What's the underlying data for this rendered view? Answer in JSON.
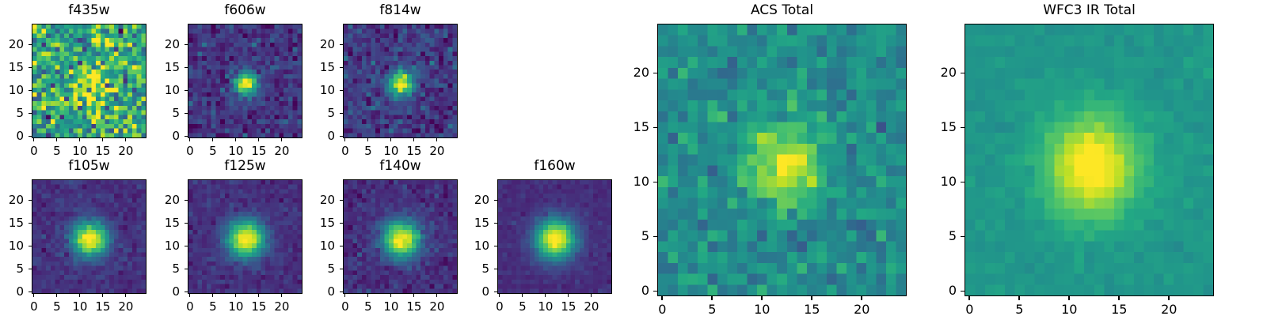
{
  "figure": {
    "description": "Grid of astronomical image cutouts in HST filters plus stacked totals",
    "background": "#ffffff"
  },
  "colors": {
    "axis": "#000000",
    "text": "#000000",
    "viridis_stops": [
      [
        0.0,
        "#440154"
      ],
      [
        0.1,
        "#482475"
      ],
      [
        0.2,
        "#414487"
      ],
      [
        0.3,
        "#355f8d"
      ],
      [
        0.4,
        "#2a788e"
      ],
      [
        0.5,
        "#21918c"
      ],
      [
        0.6,
        "#22a884"
      ],
      [
        0.7,
        "#44bf70"
      ],
      [
        0.8,
        "#7ad151"
      ],
      [
        0.9,
        "#bddf26"
      ],
      [
        1.0,
        "#fde725"
      ]
    ]
  },
  "chart_data": [
    {
      "id": "f435w",
      "type": "heatmap",
      "title": "f435w",
      "grid": [
        25,
        25
      ],
      "axis_range": [
        -0.5,
        24.5
      ],
      "xticks": [
        0,
        5,
        10,
        15,
        20
      ],
      "yticks": [
        0,
        5,
        10,
        15,
        20
      ],
      "colormap": "viridis",
      "source": {
        "cx": 12.2,
        "cy": 11.4,
        "sigma": 2.6,
        "amplitude": 0.45
      },
      "background": 0.5,
      "noise_sigma": 0.27,
      "vmin": -0.3,
      "vmax": 1.05,
      "seed": 11
    },
    {
      "id": "f606w",
      "type": "heatmap",
      "title": "f606w",
      "grid": [
        25,
        25
      ],
      "axis_range": [
        -0.5,
        24.5
      ],
      "xticks": [
        0,
        5,
        10,
        15,
        20
      ],
      "yticks": [
        0,
        5,
        10,
        15,
        20
      ],
      "colormap": "viridis",
      "source": {
        "cx": 12.2,
        "cy": 11.4,
        "sigma": 1.7,
        "amplitude": 1.25
      },
      "background": 0.12,
      "noise_sigma": 0.1,
      "vmin": -0.1,
      "vmax": 1.3,
      "seed": 22
    },
    {
      "id": "f814w",
      "type": "heatmap",
      "title": "f814w",
      "grid": [
        25,
        25
      ],
      "axis_range": [
        -0.5,
        24.5
      ],
      "xticks": [
        0,
        5,
        10,
        15,
        20
      ],
      "yticks": [
        0,
        5,
        10,
        15,
        20
      ],
      "colormap": "viridis",
      "source": {
        "cx": 12.2,
        "cy": 11.4,
        "sigma": 1.9,
        "amplitude": 1.2
      },
      "background": 0.13,
      "noise_sigma": 0.11,
      "vmin": -0.1,
      "vmax": 1.25,
      "seed": 33
    },
    {
      "id": "f105w",
      "type": "heatmap",
      "title": "f105w",
      "grid": [
        25,
        25
      ],
      "axis_range": [
        -0.5,
        24.5
      ],
      "xticks": [
        0,
        5,
        10,
        15,
        20
      ],
      "yticks": [
        0,
        5,
        10,
        15,
        20
      ],
      "colormap": "viridis",
      "source": {
        "cx": 12.2,
        "cy": 11.4,
        "sigma": 2.7,
        "amplitude": 1.15
      },
      "background": 0.1,
      "noise_sigma": 0.05,
      "vmin": -0.08,
      "vmax": 1.2,
      "seed": 44
    },
    {
      "id": "f125w",
      "type": "heatmap",
      "title": "f125w",
      "grid": [
        25,
        25
      ],
      "axis_range": [
        -0.5,
        24.5
      ],
      "xticks": [
        0,
        5,
        10,
        15,
        20
      ],
      "yticks": [
        0,
        5,
        10,
        15,
        20
      ],
      "colormap": "viridis",
      "source": {
        "cx": 12.2,
        "cy": 11.4,
        "sigma": 2.9,
        "amplitude": 1.2
      },
      "background": 0.1,
      "noise_sigma": 0.05,
      "vmin": -0.08,
      "vmax": 1.25,
      "seed": 55
    },
    {
      "id": "f140w",
      "type": "heatmap",
      "title": "f140w",
      "grid": [
        25,
        25
      ],
      "axis_range": [
        -0.5,
        24.5
      ],
      "xticks": [
        0,
        5,
        10,
        15,
        20
      ],
      "yticks": [
        0,
        5,
        10,
        15,
        20
      ],
      "colormap": "viridis",
      "source": {
        "cx": 12.2,
        "cy": 11.4,
        "sigma": 2.9,
        "amplitude": 1.2
      },
      "background": 0.1,
      "noise_sigma": 0.06,
      "vmin": -0.08,
      "vmax": 1.25,
      "seed": 66
    },
    {
      "id": "f160w",
      "type": "heatmap",
      "title": "f160w",
      "grid": [
        25,
        25
      ],
      "axis_range": [
        -0.5,
        24.5
      ],
      "xticks": [
        0,
        5,
        10,
        15,
        20
      ],
      "yticks": [
        0,
        5,
        10,
        15,
        20
      ],
      "colormap": "viridis",
      "source": {
        "cx": 12.2,
        "cy": 11.4,
        "sigma": 3.1,
        "amplitude": 1.25
      },
      "background": 0.1,
      "noise_sigma": 0.035,
      "vmin": -0.08,
      "vmax": 1.3,
      "seed": 77
    },
    {
      "id": "acs",
      "type": "heatmap",
      "title": "ACS Total",
      "grid": [
        25,
        25
      ],
      "axis_range": [
        -0.5,
        24.5
      ],
      "xticks": [
        0,
        5,
        10,
        15,
        20
      ],
      "yticks": [
        0,
        5,
        10,
        15,
        20
      ],
      "colormap": "viridis",
      "source": {
        "cx": 12.3,
        "cy": 11.4,
        "sigma": 2.4,
        "amplitude": 1.05
      },
      "background": 0.0,
      "noise_sigma": 0.16,
      "vmin": -1.0,
      "vmax": 1.05,
      "seed": 88
    },
    {
      "id": "wfc3",
      "type": "heatmap",
      "title": "WFC3 IR Total",
      "grid": [
        25,
        25
      ],
      "axis_range": [
        -0.5,
        24.5
      ],
      "xticks": [
        0,
        5,
        10,
        15,
        20
      ],
      "yticks": [
        0,
        5,
        10,
        15,
        20
      ],
      "colormap": "viridis",
      "source": {
        "cx": 12.3,
        "cy": 11.4,
        "sigma": 3.3,
        "amplitude": 1.1
      },
      "background": 0.0,
      "noise_sigma": 0.05,
      "vmin": -1.1,
      "vmax": 1.0,
      "seed": 99
    }
  ]
}
